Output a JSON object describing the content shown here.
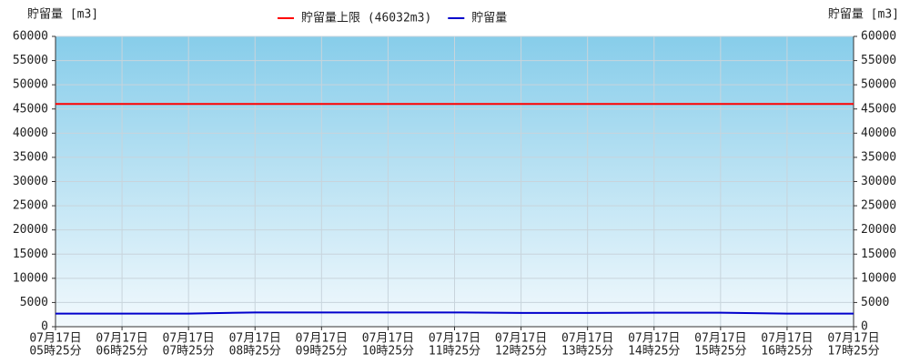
{
  "chart_data": {
    "type": "line",
    "y_label": "貯留量 [m3]",
    "y2_label": "貯留量 [m3]",
    "categories": [
      [
        "07月17日",
        "05時25分"
      ],
      [
        "07月17日",
        "06時25分"
      ],
      [
        "07月17日",
        "07時25分"
      ],
      [
        "07月17日",
        "08時25分"
      ],
      [
        "07月17日",
        "09時25分"
      ],
      [
        "07月17日",
        "10時25分"
      ],
      [
        "07月17日",
        "11時25分"
      ],
      [
        "07月17日",
        "12時25分"
      ],
      [
        "07月17日",
        "13時25分"
      ],
      [
        "07月17日",
        "14時25分"
      ],
      [
        "07月17日",
        "15時25分"
      ],
      [
        "07月17日",
        "16時25分"
      ],
      [
        "07月17日",
        "17時25分"
      ]
    ],
    "series": [
      {
        "name": "貯留量上限 (46032m3)",
        "color": "#ff0000",
        "values": [
          46032,
          46032,
          46032,
          46032,
          46032,
          46032,
          46032,
          46032,
          46032,
          46032,
          46032,
          46032,
          46032
        ]
      },
      {
        "name": "貯留量",
        "color": "#0000cc",
        "values": [
          2700,
          2700,
          2700,
          2950,
          2950,
          2950,
          2950,
          2850,
          2850,
          2900,
          2900,
          2700,
          2700
        ]
      }
    ],
    "ylim": [
      0,
      60000
    ],
    "yticks": [
      0,
      5000,
      10000,
      15000,
      20000,
      25000,
      30000,
      35000,
      40000,
      45000,
      50000,
      55000,
      60000
    ],
    "y2lim": [
      0,
      60000
    ],
    "y2ticks": [
      0,
      5000,
      10000,
      15000,
      20000,
      25000,
      30000,
      35000,
      40000,
      45000,
      50000,
      55000,
      60000
    ],
    "grid": true,
    "legend": "top"
  }
}
